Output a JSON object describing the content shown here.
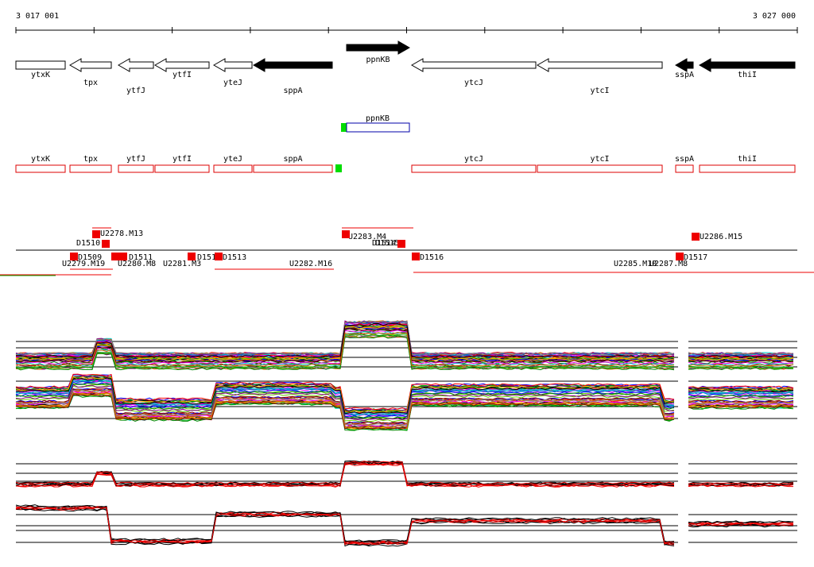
{
  "ruler": {
    "start": "3 017 001",
    "end": "3 027 000"
  },
  "genes": [
    "ytxK",
    "tpx",
    "ytfJ",
    "ytfI",
    "yteJ",
    "sppA",
    "ppnKB",
    "ytcJ",
    "ytcI",
    "sspA",
    "thiI"
  ],
  "transcript": {
    "label": "ppnKB"
  },
  "cds": [
    "ytxK",
    "tpx",
    "ytfJ",
    "ytfI",
    "yteJ",
    "sppA",
    "ytcJ",
    "ytcI",
    "sspA",
    "thiI"
  ],
  "features": [
    "U2278.M13",
    "D1510",
    "D1509",
    "U2279.M19",
    "D1511",
    "U2280.M8",
    "U2281.M3",
    "D151",
    "D1513",
    "U2282.M16",
    "U2283.M4",
    "D1514",
    "D1515",
    "D1516",
    "U2285.M10",
    "U2287.M8",
    "D1517",
    "U2286.M15"
  ]
}
